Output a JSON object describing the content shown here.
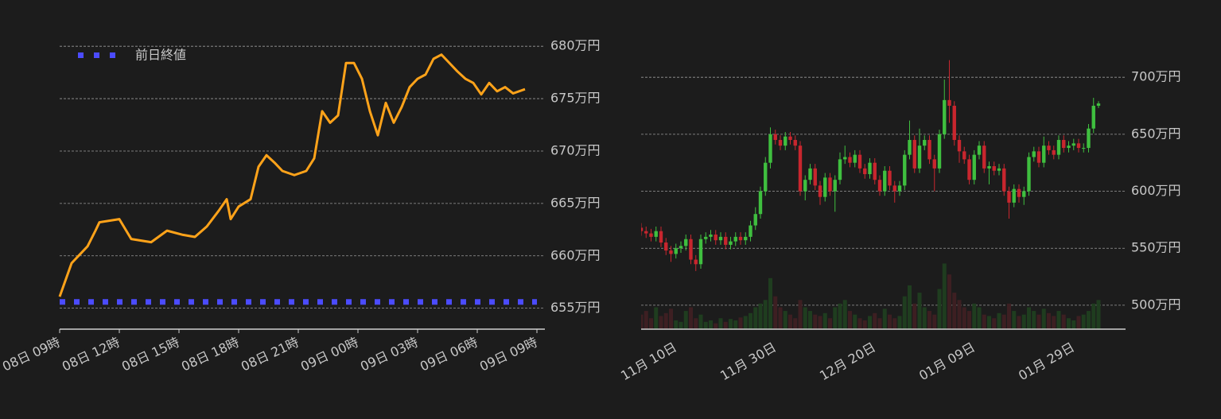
{
  "chart_data": [
    {
      "type": "line",
      "legend": "upper left",
      "grid": true,
      "xlim": [
        0,
        24
      ],
      "ylim": [
        653,
        681
      ],
      "xticks": [
        {
          "value": 0,
          "label": "08日 09時"
        },
        {
          "value": 3,
          "label": "08日 12時"
        },
        {
          "value": 6,
          "label": "08日 15時"
        },
        {
          "value": 9,
          "label": "08日 18時"
        },
        {
          "value": 12,
          "label": "08日 21時"
        },
        {
          "value": 15,
          "label": "09日 00時"
        },
        {
          "value": 18,
          "label": "09日 03時"
        },
        {
          "value": 21,
          "label": "09日 06時"
        },
        {
          "value": 24,
          "label": "09日 09時"
        }
      ],
      "yticks": [
        {
          "value": 655,
          "label": "655万円"
        },
        {
          "value": 660,
          "label": "660万円"
        },
        {
          "value": 665,
          "label": "665万円"
        },
        {
          "value": 670,
          "label": "670万円"
        },
        {
          "value": 675,
          "label": "675万円"
        },
        {
          "value": 680,
          "label": "680万円"
        }
      ],
      "x": [
        0,
        0.6,
        1,
        1.4,
        1.8,
        2,
        3,
        3.6,
        4.6,
        5.4,
        6.2,
        6.8,
        7.4,
        8,
        8.4,
        8.6,
        9,
        9.6,
        10,
        10.4,
        10.8,
        11.2,
        11.8,
        12.4,
        12.8,
        13.2,
        13.6,
        14,
        14.4,
        14.8,
        15.2,
        15.6,
        16,
        16.4,
        16.8,
        17.2,
        17.6,
        18,
        18.4,
        18.8,
        19.2,
        19.6,
        20,
        20.4,
        20.8,
        21.2,
        21.6,
        22,
        22.4,
        22.8,
        23.4
      ],
      "series": [
        {
          "color": "#ffa31a",
          "values": [
            656.1,
            659.3,
            660.1,
            660.9,
            662.4,
            663.2,
            663.5,
            661.6,
            661.3,
            662.4,
            662.0,
            661.8,
            662.8,
            664.3,
            665.4,
            663.5,
            664.7,
            665.4,
            668.5,
            669.6,
            668.9,
            668.1,
            667.7,
            668.1,
            669.3,
            673.8,
            672.7,
            673.4,
            678.4,
            678.4,
            676.9,
            673.8,
            671.5,
            674.6,
            672.7,
            674.2,
            676.1,
            676.9,
            677.3,
            678.8,
            679.2,
            678.4,
            677.6,
            676.9,
            676.5,
            675.4,
            676.5,
            675.7,
            676.1,
            675.5,
            675.9
          ]
        }
      ],
      "reference": {
        "name": "前日終値",
        "value": 655.6,
        "color": "#4b4bff"
      }
    },
    {
      "type": "candlestick",
      "grid": true,
      "ylim": [
        479,
        735
      ],
      "y2lim": [
        0,
        400
      ],
      "yticks": [
        {
          "value": 500,
          "label": "500万円"
        },
        {
          "value": 550,
          "label": "550万円"
        },
        {
          "value": 600,
          "label": "600万円"
        },
        {
          "value": 650,
          "label": "650万円"
        },
        {
          "value": 700,
          "label": "700万円"
        }
      ],
      "up_color": "#3fbf3f",
      "down_color": "#c8262e",
      "volume_up_color": "#1f3d1f",
      "volume_down_color": "#3d1f22",
      "categories": [
        null,
        null,
        null,
        null,
        null,
        null,
        null,
        "11月 10日",
        null,
        null,
        null,
        null,
        null,
        null,
        null,
        null,
        null,
        null,
        null,
        null,
        null,
        null,
        null,
        null,
        null,
        null,
        null,
        "11月 30日",
        null,
        null,
        null,
        null,
        null,
        null,
        null,
        null,
        null,
        null,
        null,
        null,
        null,
        null,
        null,
        null,
        null,
        null,
        null,
        "12月 20日",
        null,
        null,
        null,
        null,
        null,
        null,
        null,
        null,
        null,
        null,
        null,
        null,
        null,
        null,
        null,
        null,
        null,
        null,
        null,
        "01月 09日",
        null,
        null,
        null,
        null,
        null,
        null,
        null,
        null,
        null,
        null,
        null,
        null,
        null,
        null,
        null,
        null,
        null,
        null,
        null,
        "01月 29日",
        null,
        null,
        null,
        null,
        null
      ],
      "open": [
        568,
        565,
        563,
        560,
        565,
        555,
        548,
        545,
        550,
        552,
        558,
        540,
        536,
        558,
        560,
        562,
        557,
        560,
        553,
        556,
        560,
        557,
        560,
        570,
        580,
        600,
        625,
        650,
        645,
        640,
        648,
        645,
        640,
        600,
        610,
        620,
        605,
        595,
        612,
        600,
        610,
        628,
        630,
        625,
        632,
        620,
        615,
        625,
        610,
        600,
        618,
        605,
        600,
        605,
        632,
        645,
        620,
        640,
        645,
        628,
        620,
        650,
        680,
        675,
        645,
        635,
        628,
        610,
        632,
        640,
        620,
        622,
        618,
        620,
        600,
        590,
        602,
        595,
        600,
        630,
        635,
        625,
        640,
        636,
        632,
        645,
        638,
        640,
        642,
        638,
        638,
        655,
        675
      ],
      "high": [
        572,
        569,
        567,
        569,
        569,
        559,
        552,
        554,
        556,
        562,
        562,
        544,
        562,
        564,
        566,
        566,
        564,
        564,
        560,
        564,
        564,
        564,
        574,
        586,
        604,
        630,
        656,
        654,
        649,
        652,
        652,
        649,
        644,
        614,
        624,
        624,
        609,
        616,
        616,
        614,
        634,
        640,
        634,
        636,
        636,
        624,
        629,
        629,
        614,
        622,
        622,
        609,
        609,
        636,
        662,
        649,
        655,
        649,
        649,
        632,
        654,
        698,
        715,
        679,
        649,
        639,
        632,
        636,
        644,
        644,
        626,
        626,
        624,
        624,
        604,
        606,
        606,
        604,
        634,
        639,
        639,
        648,
        644,
        640,
        649,
        649,
        644,
        646,
        646,
        642,
        659,
        682,
        679
      ],
      "low": [
        561,
        559,
        556,
        556,
        551,
        544,
        538,
        541,
        546,
        548,
        536,
        530,
        532,
        554,
        556,
        553,
        553,
        549,
        549,
        552,
        553,
        553,
        556,
        566,
        576,
        596,
        620,
        641,
        636,
        636,
        641,
        636,
        596,
        592,
        606,
        601,
        588,
        591,
        596,
        582,
        606,
        624,
        621,
        621,
        616,
        611,
        611,
        606,
        596,
        596,
        601,
        590,
        596,
        601,
        628,
        616,
        616,
        636,
        624,
        600,
        616,
        646,
        660,
        640,
        625,
        624,
        606,
        606,
        628,
        616,
        606,
        614,
        614,
        596,
        576,
        586,
        590,
        588,
        596,
        626,
        621,
        621,
        632,
        628,
        628,
        634,
        634,
        636,
        634,
        634,
        634,
        651,
        673
      ],
      "close": [
        565,
        563,
        560,
        565,
        555,
        548,
        545,
        550,
        552,
        558,
        540,
        536,
        558,
        560,
        562,
        557,
        560,
        553,
        556,
        560,
        557,
        560,
        570,
        580,
        600,
        625,
        650,
        645,
        640,
        648,
        645,
        640,
        600,
        610,
        620,
        605,
        595,
        612,
        600,
        610,
        628,
        630,
        625,
        632,
        620,
        615,
        625,
        610,
        600,
        618,
        605,
        600,
        605,
        632,
        645,
        620,
        640,
        645,
        628,
        620,
        650,
        680,
        675,
        645,
        635,
        628,
        610,
        632,
        640,
        620,
        622,
        618,
        620,
        600,
        590,
        602,
        595,
        600,
        630,
        635,
        625,
        640,
        636,
        632,
        645,
        638,
        640,
        642,
        638,
        638,
        655,
        675,
        677
      ],
      "volume": [
        20,
        25,
        15,
        30,
        18,
        22,
        28,
        12,
        10,
        25,
        30,
        15,
        20,
        10,
        12,
        8,
        15,
        10,
        14,
        12,
        16,
        18,
        22,
        30,
        35,
        40,
        70,
        45,
        30,
        25,
        20,
        15,
        40,
        30,
        25,
        20,
        18,
        22,
        15,
        30,
        35,
        40,
        25,
        20,
        15,
        12,
        18,
        22,
        15,
        28,
        20,
        15,
        18,
        45,
        60,
        35,
        50,
        30,
        25,
        20,
        55,
        90,
        75,
        50,
        40,
        30,
        25,
        35,
        30,
        20,
        18,
        15,
        22,
        20,
        35,
        25,
        18,
        20,
        30,
        25,
        20,
        28,
        22,
        18,
        25,
        20,
        15,
        12,
        18,
        20,
        25,
        35,
        40
      ]
    }
  ]
}
